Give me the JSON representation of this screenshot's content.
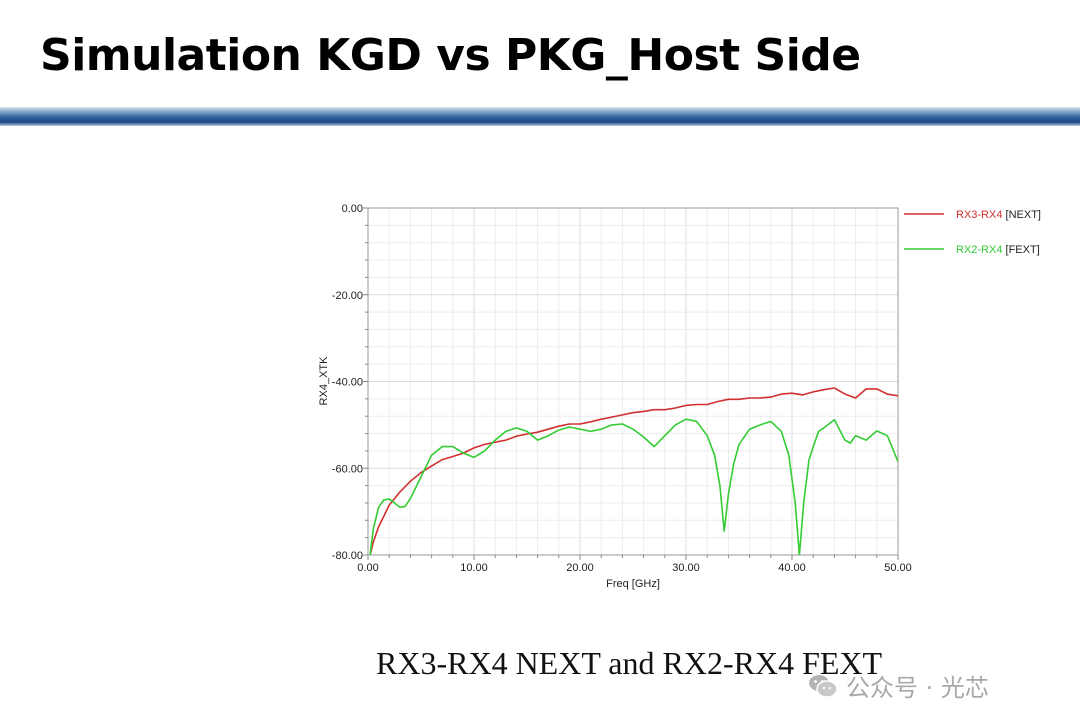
{
  "slide": {
    "title": "Simulation KGD vs PKG_Host Side",
    "caption": "RX3-RX4 NEXT and RX2-RX4 FEXT",
    "watermark": "公众号 · 光芯",
    "watermark_icon": "wechat-icon"
  },
  "chart_data": {
    "type": "line",
    "xlabel": "Freq [GHz]",
    "ylabel": "RX4_XTK",
    "xlim": [
      0,
      50
    ],
    "ylim": [
      -80,
      0
    ],
    "xticks": [
      "0.00",
      "10.00",
      "20.00",
      "30.00",
      "40.00",
      "50.00"
    ],
    "yticks": [
      "0.00",
      "-20.00",
      "-40.00",
      "-60.00",
      "-80.00"
    ],
    "grid": true,
    "legend_position": "top-right outside",
    "series": [
      {
        "legend_name": "RX3-RX4",
        "legend_tag": "[NEXT]",
        "color": "#d03030",
        "x": [
          0.2,
          0.5,
          1,
          1.5,
          2,
          3,
          4,
          5,
          6,
          7,
          8,
          9,
          10,
          11,
          12,
          13,
          14,
          15,
          16,
          17,
          18,
          19,
          20,
          21,
          22,
          23,
          24,
          25,
          26,
          27,
          28,
          29,
          30,
          31,
          32,
          33,
          34,
          35,
          36,
          37,
          38,
          39,
          40,
          41,
          42,
          43,
          44,
          45,
          46,
          47,
          48,
          49,
          50
        ],
        "y": [
          -80,
          -77,
          -73.5,
          -71,
          -68.5,
          -65.5,
          -63,
          -61,
          -59.5,
          -58,
          -57.3,
          -56.5,
          -55.3,
          -54.5,
          -54,
          -53.5,
          -52.6,
          -52.1,
          -51.7,
          -51,
          -50.3,
          -49.8,
          -49.8,
          -49.3,
          -48.7,
          -48.2,
          -47.7,
          -47.2,
          -46.9,
          -46.5,
          -46.5,
          -46.1,
          -45.5,
          -45.3,
          -45.3,
          -44.6,
          -44.1,
          -44.1,
          -43.8,
          -43.8,
          -43.6,
          -42.9,
          -42.7,
          -43.1,
          -42.4,
          -41.9,
          -41.5,
          -42.9,
          -43.8,
          -41.7,
          -41.7,
          -42.9,
          -43.3
        ]
      },
      {
        "legend_name": "RX2-RX4",
        "legend_tag": "[FEXT]",
        "color": "#33cc33",
        "x": [
          0.2,
          0.5,
          1,
          1.5,
          2,
          2.5,
          3,
          3.5,
          4,
          5,
          6,
          7,
          8,
          9,
          10,
          11,
          12,
          13,
          14,
          15,
          16,
          17,
          18,
          19,
          20,
          21,
          22,
          23,
          24,
          25,
          26,
          27,
          28,
          29,
          30,
          31,
          32,
          32.7,
          33.2,
          33.6,
          34,
          34.5,
          35,
          36,
          37,
          38,
          39,
          39.7,
          40.3,
          40.7,
          41.1,
          41.6,
          42.5,
          43,
          44,
          45,
          45.5,
          46,
          47,
          48,
          49,
          50
        ],
        "y": [
          -80,
          -74,
          -69,
          -67.3,
          -67.1,
          -68,
          -69,
          -68.8,
          -67,
          -62,
          -57,
          -55,
          -55,
          -56.5,
          -57.5,
          -56,
          -53.5,
          -51.5,
          -50.7,
          -51.5,
          -53.5,
          -52.5,
          -51.2,
          -50.5,
          -51,
          -51.5,
          -51,
          -50,
          -49.8,
          -51,
          -52.8,
          -55,
          -52.5,
          -50,
          -48.7,
          -49.2,
          -52.5,
          -57,
          -64,
          -74.5,
          -66,
          -59,
          -54.5,
          -51,
          -50,
          -49.2,
          -51.5,
          -57,
          -68,
          -80,
          -68,
          -58,
          -51.5,
          -50.7,
          -48.8,
          -53.5,
          -54.2,
          -52.5,
          -53.5,
          -51.4,
          -52.5,
          -58.5
        ]
      }
    ]
  }
}
